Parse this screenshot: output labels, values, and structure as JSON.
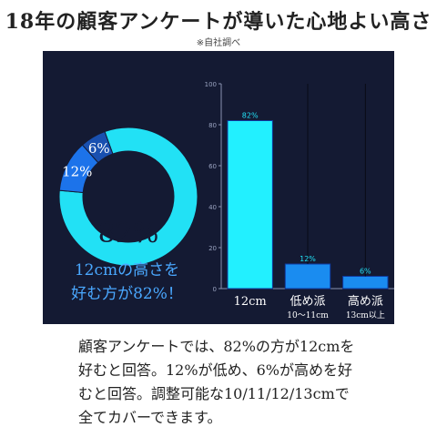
{
  "header": {
    "title": "18年の顧客アンケートが導いた心地よい高さ",
    "note": "※自社調べ"
  },
  "donut": {
    "caption_line1": "12cmの高さを",
    "caption_line2": "好む方が82%！",
    "slices": [
      {
        "label": "82%",
        "value": 82,
        "color": "#22e1f5"
      },
      {
        "label": "12%",
        "value": 12,
        "color": "#1c73ea"
      },
      {
        "label": "6%",
        "value": 6,
        "color": "#1950b0"
      }
    ]
  },
  "chart_data": {
    "type": "bar",
    "categories": [
      "12cm",
      "低め派",
      "高め派"
    ],
    "sublabels": [
      "",
      "10〜11cm",
      "13cm以上"
    ],
    "values": [
      82,
      12,
      6
    ],
    "data_labels": [
      "82%",
      "12%",
      "6%"
    ],
    "ylim": [
      0,
      100
    ],
    "yticks": [
      0,
      20,
      40,
      60,
      80,
      100
    ],
    "grid": false,
    "colors": {
      "bar": "#22f0ff",
      "bar_small": "#1a8cf0"
    }
  },
  "body": {
    "lines": [
      "顧客アンケートでは、82%の方が12cmを",
      "好むと回答。12%が低め、6%が高めを好",
      "むと回答。調整可能な10/11/12/13cmで",
      "全てカバーできます。"
    ]
  }
}
